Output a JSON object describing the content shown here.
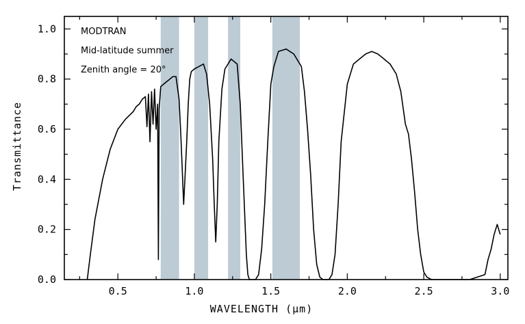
{
  "chart_data": {
    "type": "line",
    "title": "",
    "xlabel": "WAVELENGTH (µm)",
    "ylabel": "Transmittance",
    "xlim": [
      0.15,
      3.05
    ],
    "ylim": [
      0.0,
      1.05
    ],
    "xticks": [
      "0.5",
      "1.0",
      "1.5",
      "2.0",
      "2.5",
      "3.0"
    ],
    "xtick_values": [
      0.5,
      1.0,
      1.5,
      2.0,
      2.5,
      3.0
    ],
    "yticks": [
      "0.0",
      "0.2",
      "0.4",
      "0.6",
      "0.8",
      "1.0"
    ],
    "ytick_values": [
      0.0,
      0.2,
      0.4,
      0.6,
      0.8,
      1.0
    ],
    "grid": false,
    "annotations": [
      "MODTRAN",
      "Mid-latitude summer",
      "Zenith angle = 20°"
    ],
    "shaded_bands": [
      {
        "start": 0.78,
        "end": 0.9
      },
      {
        "start": 1.0,
        "end": 1.09
      },
      {
        "start": 1.22,
        "end": 1.3
      },
      {
        "start": 1.51,
        "end": 1.69
      }
    ],
    "series": [
      {
        "name": "Transmittance",
        "x": [
          0.3,
          0.32,
          0.35,
          0.4,
          0.45,
          0.5,
          0.55,
          0.6,
          0.62,
          0.64,
          0.66,
          0.68,
          0.69,
          0.7,
          0.71,
          0.72,
          0.73,
          0.74,
          0.75,
          0.76,
          0.765,
          0.77,
          0.78,
          0.8,
          0.82,
          0.84,
          0.86,
          0.88,
          0.9,
          0.91,
          0.92,
          0.93,
          0.94,
          0.95,
          0.96,
          0.97,
          0.98,
          1.0,
          1.03,
          1.06,
          1.08,
          1.1,
          1.12,
          1.13,
          1.14,
          1.15,
          1.16,
          1.18,
          1.2,
          1.22,
          1.24,
          1.26,
          1.28,
          1.3,
          1.32,
          1.34,
          1.35,
          1.36,
          1.37,
          1.38,
          1.4,
          1.42,
          1.44,
          1.46,
          1.48,
          1.5,
          1.52,
          1.55,
          1.6,
          1.65,
          1.7,
          1.72,
          1.74,
          1.76,
          1.78,
          1.8,
          1.82,
          1.84,
          1.86,
          1.88,
          1.9,
          1.92,
          1.94,
          1.96,
          2.0,
          2.04,
          2.08,
          2.12,
          2.16,
          2.2,
          2.24,
          2.28,
          2.32,
          2.35,
          2.38,
          2.4,
          2.42,
          2.44,
          2.46,
          2.48,
          2.5,
          2.52,
          2.55,
          2.6,
          2.7,
          2.8,
          2.9,
          2.92,
          2.94,
          2.96,
          2.98,
          3.0
        ],
        "y": [
          0.0,
          0.1,
          0.24,
          0.4,
          0.52,
          0.6,
          0.64,
          0.67,
          0.69,
          0.7,
          0.72,
          0.73,
          0.61,
          0.74,
          0.55,
          0.75,
          0.62,
          0.76,
          0.6,
          0.7,
          0.08,
          0.68,
          0.77,
          0.78,
          0.79,
          0.8,
          0.81,
          0.81,
          0.72,
          0.6,
          0.45,
          0.3,
          0.42,
          0.55,
          0.7,
          0.8,
          0.83,
          0.84,
          0.85,
          0.86,
          0.82,
          0.7,
          0.48,
          0.3,
          0.15,
          0.3,
          0.55,
          0.76,
          0.84,
          0.86,
          0.88,
          0.87,
          0.86,
          0.7,
          0.4,
          0.1,
          0.02,
          0.0,
          0.0,
          0.0,
          0.0,
          0.02,
          0.12,
          0.3,
          0.55,
          0.78,
          0.85,
          0.91,
          0.92,
          0.9,
          0.85,
          0.75,
          0.6,
          0.42,
          0.2,
          0.06,
          0.01,
          0.0,
          0.0,
          0.0,
          0.02,
          0.1,
          0.3,
          0.55,
          0.78,
          0.86,
          0.88,
          0.9,
          0.91,
          0.9,
          0.88,
          0.86,
          0.82,
          0.75,
          0.62,
          0.58,
          0.48,
          0.35,
          0.2,
          0.1,
          0.03,
          0.01,
          0.0,
          0.0,
          0.0,
          0.0,
          0.02,
          0.08,
          0.12,
          0.18,
          0.22,
          0.18
        ]
      }
    ]
  }
}
